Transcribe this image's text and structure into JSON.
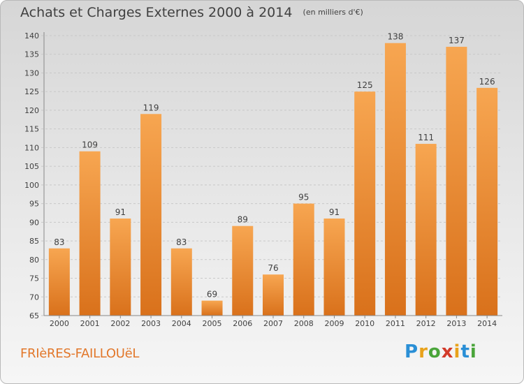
{
  "header": {
    "title": "Achats et Charges Externes 2000 à 2014",
    "unit_note": "(en milliers d'€)"
  },
  "footer": {
    "place_name": "FRIèRES-FAILLOUëL",
    "logo": {
      "letters": [
        "P",
        "r",
        "o",
        "x",
        "i",
        "t",
        "i"
      ],
      "colors": [
        "#2a8fd6",
        "#e8a21b",
        "#4aa53a",
        "#d23a2a",
        "#e8a21b",
        "#2a8fd6",
        "#4aa53a"
      ]
    }
  },
  "colors": {
    "bar_light": "#f7a651",
    "bar_dark": "#d9711b",
    "grid": "#c8c8c8",
    "axis": "#888888"
  },
  "chart_data": {
    "type": "bar",
    "title": "Achats et Charges Externes 2000 à 2014",
    "subtitle": "(en milliers d'€)",
    "xlabel": "",
    "ylabel": "",
    "categories": [
      "2000",
      "2001",
      "2002",
      "2003",
      "2004",
      "2005",
      "2006",
      "2007",
      "2008",
      "2009",
      "2010",
      "2011",
      "2012",
      "2013",
      "2014"
    ],
    "values": [
      83,
      109,
      91,
      119,
      83,
      69,
      89,
      76,
      95,
      91,
      125,
      138,
      111,
      137,
      126
    ],
    "ylim": [
      65,
      140
    ],
    "yticks": [
      65,
      70,
      75,
      80,
      85,
      90,
      95,
      100,
      105,
      110,
      115,
      120,
      125,
      130,
      135,
      140
    ],
    "grid": true,
    "data_labels": true
  }
}
